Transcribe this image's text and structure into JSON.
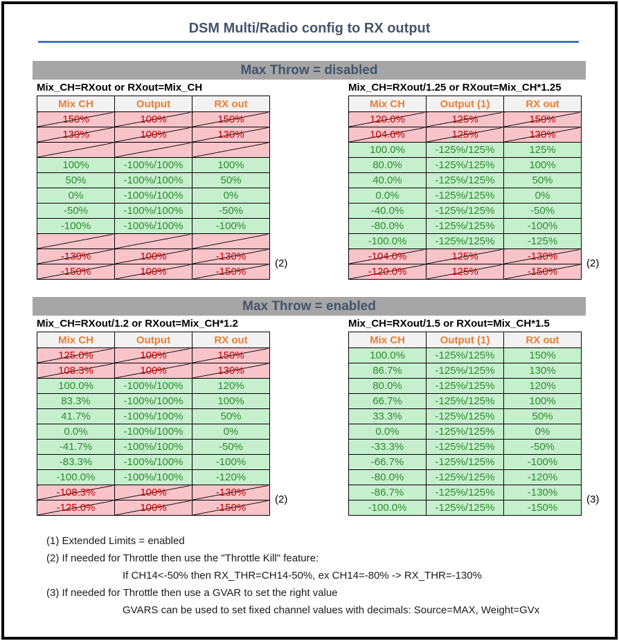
{
  "title": "DSM Multi/Radio config to RX output",
  "colors": {
    "accent_blue": "#4472C4",
    "heading_text": "#44546A",
    "section_bar_bg": "#A6A6A6",
    "header_cell_bg": "#F2F2F2",
    "header_cell_text": "#ED7D31",
    "valid_row_bg": "#C6EFCE",
    "valid_row_text": "#2E8B2E",
    "invalid_row_bg": "#F8C4C9",
    "invalid_row_text": "#C00000"
  },
  "sections": [
    {
      "title": "Max Throw = disabled",
      "tables": [
        {
          "subtitle": "Mix_CH=RXout or RXout=Mix_CH",
          "columns": [
            "Mix CH",
            "Output",
            "RX out"
          ],
          "rows": [
            {
              "state": "bad",
              "cells": [
                "150%",
                "100%",
                "150%"
              ]
            },
            {
              "state": "bad",
              "cells": [
                "130%",
                "100%",
                "130%"
              ]
            },
            {
              "state": "bad",
              "cells": [
                "",
                "",
                ""
              ]
            },
            {
              "state": "good",
              "cells": [
                "100%",
                "-100%/100%",
                "100%"
              ]
            },
            {
              "state": "good",
              "cells": [
                "50%",
                "-100%/100%",
                "50%"
              ]
            },
            {
              "state": "good",
              "cells": [
                "0%",
                "-100%/100%",
                "0%"
              ]
            },
            {
              "state": "good",
              "cells": [
                "-50%",
                "-100%/100%",
                "-50%"
              ]
            },
            {
              "state": "good",
              "cells": [
                "-100%",
                "-100%/100%",
                "-100%"
              ]
            },
            {
              "state": "bad",
              "cells": [
                "",
                "",
                ""
              ]
            },
            {
              "state": "bad",
              "cells": [
                "-130%",
                "100%",
                "-130%"
              ]
            },
            {
              "state": "bad",
              "cells": [
                "-150%",
                "100%",
                "-150%"
              ]
            }
          ],
          "annotation": {
            "label": "(2)",
            "row_index": 9
          }
        },
        {
          "subtitle": "Mix_CH=RXout/1.25 or RXout=Mix_CH*1.25",
          "columns": [
            "Mix CH",
            "Output (1)",
            "RX out"
          ],
          "rows": [
            {
              "state": "bad",
              "cells": [
                "120.0%",
                "125%",
                "150%"
              ]
            },
            {
              "state": "bad",
              "cells": [
                "104.0%",
                "125%",
                "130%"
              ]
            },
            {
              "state": "good",
              "cells": [
                "100.0%",
                "-125%/125%",
                "125%"
              ]
            },
            {
              "state": "good",
              "cells": [
                "80.0%",
                "-125%/125%",
                "100%"
              ]
            },
            {
              "state": "good",
              "cells": [
                "40.0%",
                "-125%/125%",
                "50%"
              ]
            },
            {
              "state": "good",
              "cells": [
                "0.0%",
                "-125%/125%",
                "0%"
              ]
            },
            {
              "state": "good",
              "cells": [
                "-40.0%",
                "-125%/125%",
                "-50%"
              ]
            },
            {
              "state": "good",
              "cells": [
                "-80.0%",
                "-125%/125%",
                "-100%"
              ]
            },
            {
              "state": "good",
              "cells": [
                "-100.0%",
                "-125%/125%",
                "-125%"
              ]
            },
            {
              "state": "bad",
              "cells": [
                "-104.0%",
                "125%",
                "-130%"
              ]
            },
            {
              "state": "bad",
              "cells": [
                "-120.0%",
                "125%",
                "-150%"
              ]
            }
          ],
          "annotation": {
            "label": "(2)",
            "row_index": 9
          }
        }
      ]
    },
    {
      "title": "Max Throw = enabled",
      "tables": [
        {
          "subtitle": "Mix_CH=RXout/1.2 or RXout=Mix_CH*1.2",
          "columns": [
            "Mix CH",
            "Output",
            "RX out"
          ],
          "rows": [
            {
              "state": "bad",
              "cells": [
                "125.0%",
                "100%",
                "150%"
              ]
            },
            {
              "state": "bad",
              "cells": [
                "108.3%",
                "100%",
                "130%"
              ]
            },
            {
              "state": "good",
              "cells": [
                "100.0%",
                "-100%/100%",
                "120%"
              ]
            },
            {
              "state": "good",
              "cells": [
                "83.3%",
                "-100%/100%",
                "100%"
              ]
            },
            {
              "state": "good",
              "cells": [
                "41.7%",
                "-100%/100%",
                "50%"
              ]
            },
            {
              "state": "good",
              "cells": [
                "0.0%",
                "-100%/100%",
                "0%"
              ]
            },
            {
              "state": "good",
              "cells": [
                "-41.7%",
                "-100%/100%",
                "-50%"
              ]
            },
            {
              "state": "good",
              "cells": [
                "-83.3%",
                "-100%/100%",
                "-100%"
              ]
            },
            {
              "state": "good",
              "cells": [
                "-100.0%",
                "-100%/100%",
                "-120%"
              ]
            },
            {
              "state": "bad",
              "cells": [
                "-108.3%",
                "100%",
                "-130%"
              ]
            },
            {
              "state": "bad",
              "cells": [
                "-125.0%",
                "100%",
                "-150%"
              ]
            }
          ],
          "annotation": {
            "label": "(2)",
            "row_index": 9
          }
        },
        {
          "subtitle": "Mix_CH=RXout/1.5 or RXout=Mix_CH*1.5",
          "columns": [
            "Mix CH",
            "Output (1)",
            "RX out"
          ],
          "rows": [
            {
              "state": "good",
              "cells": [
                "100.0%",
                "-125%/125%",
                "150%"
              ]
            },
            {
              "state": "good",
              "cells": [
                "86.7%",
                "-125%/125%",
                "130%"
              ]
            },
            {
              "state": "good",
              "cells": [
                "80.0%",
                "-125%/125%",
                "120%"
              ]
            },
            {
              "state": "good",
              "cells": [
                "66.7%",
                "-125%/125%",
                "100%"
              ]
            },
            {
              "state": "good",
              "cells": [
                "33.3%",
                "-125%/125%",
                "50%"
              ]
            },
            {
              "state": "good",
              "cells": [
                "0.0%",
                "-125%/125%",
                "0%"
              ]
            },
            {
              "state": "good",
              "cells": [
                "-33.3%",
                "-125%/125%",
                "-50%"
              ]
            },
            {
              "state": "good",
              "cells": [
                "-66.7%",
                "-125%/125%",
                "-100%"
              ]
            },
            {
              "state": "good",
              "cells": [
                "-80.0%",
                "-125%/125%",
                "-120%"
              ]
            },
            {
              "state": "good",
              "cells": [
                "-86.7%",
                "-125%/125%",
                "-130%"
              ]
            },
            {
              "state": "good",
              "cells": [
                "-100.0%",
                "-125%/125%",
                "-150%"
              ]
            }
          ],
          "annotation": {
            "label": "(3)",
            "row_index": 9
          }
        }
      ]
    }
  ],
  "footnotes": [
    {
      "text": "(1) Extended Limits = enabled",
      "indent": false
    },
    {
      "text": "(2) If needed for Throttle then use the \"Throttle Kill\" feature:",
      "indent": false
    },
    {
      "text": "If CH14<-50% then RX_THR=CH14-50%, ex CH14=-80% -> RX_THR=-130%",
      "indent": true
    },
    {
      "text": "(3) If needed for Throttle then use a GVAR to set the right value",
      "indent": false
    },
    {
      "text": "GVARS can be used to set fixed channel values with decimals: Source=MAX, Weight=GVx",
      "indent": true
    }
  ]
}
